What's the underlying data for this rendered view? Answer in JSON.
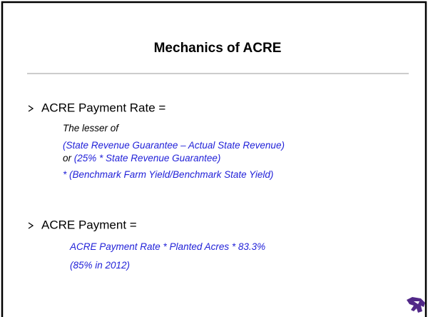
{
  "title": "Mechanics of ACRE",
  "bullets": [
    {
      "label": "ACRE Payment Rate =",
      "lines": [
        [
          {
            "text": "The lesser of",
            "color": "#000000"
          }
        ],
        [
          {
            "text": "(State Revenue Guarantee – Actual State Revenue)",
            "color": "#1f1fd8"
          }
        ],
        [
          {
            "text": "or ",
            "color": "#000000"
          },
          {
            "text": "(25% * State Revenue Guarantee)",
            "color": "#1f1fd8"
          }
        ],
        [
          {
            "text": "* (Benchmark Farm Yield/Benchmark State Yield)",
            "color": "#1f1fd8"
          }
        ]
      ]
    },
    {
      "label": "ACRE Payment =",
      "lines": [
        [
          {
            "text": "ACRE Payment Rate * Planted Acres * 83.3%",
            "color": "#1f1fd8"
          }
        ],
        [
          {
            "text": "(85% in 2012)",
            "color": "#1f1fd8"
          }
        ]
      ]
    }
  ]
}
